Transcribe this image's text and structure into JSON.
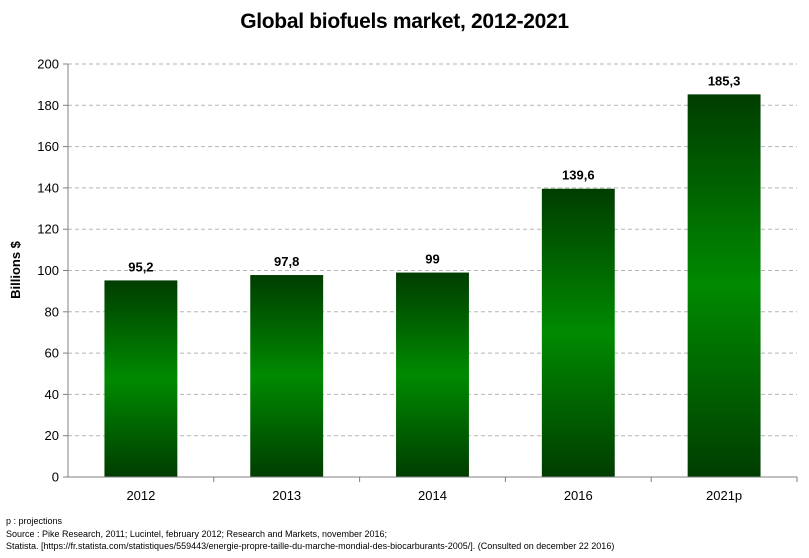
{
  "chart_data": {
    "type": "bar",
    "title": "Global biofuels market, 2012-2021",
    "xlabel": "",
    "ylabel": "Billions $",
    "categories": [
      "2012",
      "2013",
      "2014",
      "2016",
      "2021p"
    ],
    "values": [
      95.2,
      97.8,
      99,
      139.6,
      185.3
    ],
    "value_labels": [
      "95,2",
      "97,8",
      "99",
      "139,6",
      "185,3"
    ],
    "ylim": [
      0,
      200
    ],
    "yticks": [
      0,
      20,
      40,
      60,
      80,
      100,
      120,
      140,
      160,
      180,
      200
    ],
    "grid": true,
    "legend": "none",
    "bar_color_dark": "#003d00",
    "bar_color_light": "#008a00"
  },
  "notes": {
    "projections": "p : projections",
    "source": "Source : Pike Research, 2011; Lucintel, february 2012; Research and Markets, november 2016;",
    "statista": "Statista. [https://fr.statista.com/statistiques/559443/energie-propre-taille-du-marche-mondial-des-biocarburants-2005/]. (Consulted on december 22 2016)"
  }
}
